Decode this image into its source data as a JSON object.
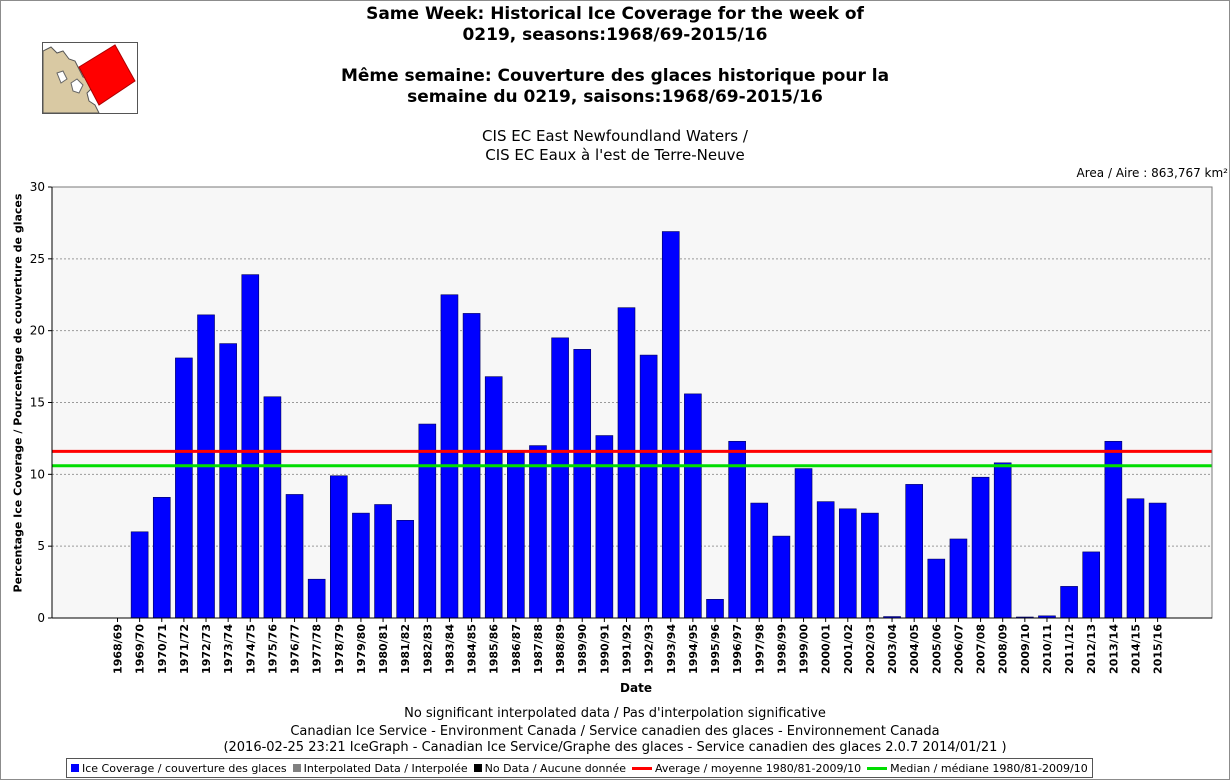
{
  "header": {
    "title_en_line1": "Same Week: Historical Ice Coverage for the week of",
    "title_en_line2": "0219, seasons:1968/69-2015/16",
    "title_fr_line1": "Même semaine: Couverture des glaces historique pour la",
    "title_fr_line2": "semaine du 0219, saisons:1968/69-2015/16",
    "region_line1": "CIS EC East Newfoundland Waters /",
    "region_line2": "CIS EC Eaux à l'est de Terre-Neuve",
    "area": "Area / Aire : 863,767 km²"
  },
  "footer": {
    "line1": "No significant interpolated data / Pas d'interpolation significative",
    "line2": "Canadian Ice Service - Environment Canada / Service canadien des glaces - Environnement Canada",
    "line3": "(2016-02-25 23:21 IceGraph - Canadian Ice Service/Graphe des glaces - Service canadien des glaces 2.0.7 2014/01/21 )"
  },
  "legend": [
    {
      "label": "Ice Coverage / couverture des glaces",
      "color": "#0000ff",
      "kind": "box"
    },
    {
      "label": "Interpolated Data / Interpolée",
      "color": "#808080",
      "kind": "box"
    },
    {
      "label": "No Data / Aucune donnée",
      "color": "#000000",
      "kind": "box"
    },
    {
      "label": "Average / moyenne 1980/81-2009/10",
      "color": "#ff0000",
      "kind": "line"
    },
    {
      "label": "Median / médiane 1980/81-2009/10",
      "color": "#00dd00",
      "kind": "line"
    }
  ],
  "chart_data": {
    "type": "bar",
    "xlabel": "Date",
    "ylabel": "Percentage Ice Coverage / Pourcentage de couverture de glaces",
    "ylim": [
      0,
      30
    ],
    "yticks": [
      0,
      5,
      10,
      15,
      20,
      25,
      30
    ],
    "grid": true,
    "bar_color": "#0000ff",
    "categories": [
      "1968/69",
      "1969/70",
      "1970/71",
      "1971/72",
      "1972/73",
      "1973/74",
      "1974/75",
      "1975/76",
      "1976/77",
      "1977/78",
      "1978/79",
      "1979/80",
      "1980/81",
      "1981/82",
      "1982/83",
      "1983/84",
      "1984/85",
      "1985/86",
      "1986/87",
      "1987/88",
      "1988/89",
      "1989/90",
      "1990/91",
      "1991/92",
      "1992/93",
      "1993/94",
      "1994/95",
      "1995/96",
      "1996/97",
      "1997/98",
      "1998/99",
      "1999/00",
      "2000/01",
      "2001/02",
      "2002/03",
      "2003/04",
      "2004/05",
      "2005/06",
      "2006/07",
      "2007/08",
      "2008/09",
      "2009/10",
      "2010/11",
      "2011/12",
      "2012/13",
      "2013/14",
      "2014/15",
      "2015/16"
    ],
    "values": [
      0,
      6.0,
      8.4,
      18.1,
      21.1,
      19.1,
      23.9,
      15.4,
      8.6,
      2.7,
      9.9,
      7.3,
      7.9,
      6.8,
      13.5,
      22.5,
      21.2,
      16.8,
      11.5,
      12.0,
      19.5,
      18.7,
      12.7,
      21.6,
      18.3,
      26.9,
      15.6,
      1.3,
      12.3,
      8.0,
      5.7,
      10.4,
      8.1,
      7.6,
      7.3,
      0.1,
      9.3,
      4.1,
      5.5,
      9.8,
      10.8,
      0.05,
      0.15,
      2.2,
      4.6,
      12.3,
      8.3,
      8.0
    ],
    "average": 11.6,
    "median": 10.6,
    "average_color": "#ff0000",
    "median_color": "#00dd00"
  }
}
